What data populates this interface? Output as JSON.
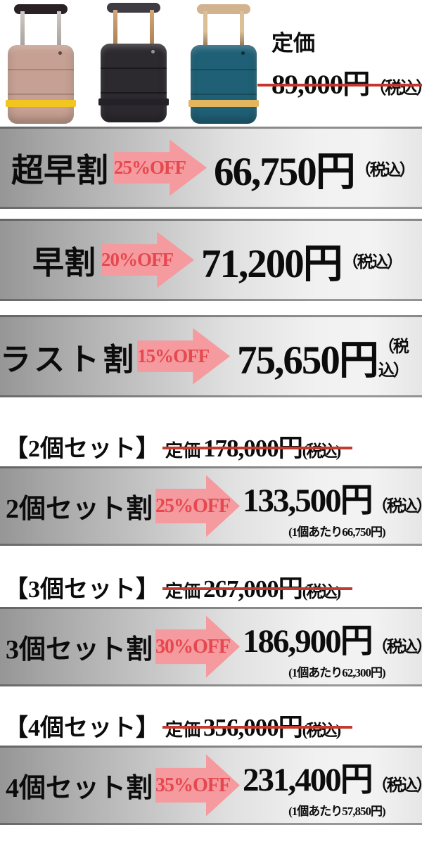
{
  "hero": {
    "list_price_label": "定価",
    "list_price": "89,000円",
    "list_price_tax": "（税込）",
    "suitcases": [
      {
        "name": "pink-suitcase",
        "body": "#c6a092",
        "strap": "#f2c51f",
        "grip": "#2a2125",
        "poles": "#b5afab"
      },
      {
        "name": "black-suitcase",
        "body": "#2d2a2f",
        "strap": "#242128",
        "grip": "#3e3c42",
        "poles": "#c59a67"
      },
      {
        "name": "teal-suitcase",
        "body": "#1f6076",
        "strap": "#e4b55f",
        "grip": "#d2b38f",
        "poles": "#c59a67"
      }
    ]
  },
  "tiers": [
    {
      "label": "超早割",
      "discount": "25%OFF",
      "price": "66,750円",
      "tax_note": "（税込）"
    },
    {
      "label": "早割",
      "discount": "20%OFF",
      "price": "71,200円",
      "tax_note": "（税込）"
    },
    {
      "label": "ラスト割",
      "discount": "15%OFF",
      "price": "75,650円",
      "tax_note": "（税込）"
    }
  ],
  "sets": [
    {
      "header_label": "【2個セット】",
      "list_price_label": "定価",
      "list_price": "178,000円",
      "list_price_tax": "(税込)",
      "tier_label": "2個セット割",
      "discount": "25%OFF",
      "price": "133,500円",
      "tax_note": "（税込）",
      "per_unit": "(1個あたり66,750円)"
    },
    {
      "header_label": "【3個セット】",
      "list_price_label": "定価",
      "list_price": "267,000円",
      "list_price_tax": "(税込)",
      "tier_label": "3個セット割",
      "discount": "30%OFF",
      "price": "186,900円",
      "tax_note": "（税込）",
      "per_unit": "(1個あたり62,300円)"
    },
    {
      "header_label": "【4個セット】",
      "list_price_label": "定価",
      "list_price": "356,000円",
      "list_price_tax": "(税込)",
      "tier_label": "4個セット割",
      "discount": "35%OFF",
      "price": "231,400円",
      "tax_note": "（税込）",
      "per_unit": "(1個あたり57,850円)"
    }
  ],
  "colors": {
    "arrow_fill": "#f59a9e",
    "arrow_text": "#e5484e",
    "strike_red": "#c23b31",
    "band_gradient_dark": "#969696",
    "band_gradient_light": "#f3f3f3",
    "price_text": "#0c0c0c"
  }
}
